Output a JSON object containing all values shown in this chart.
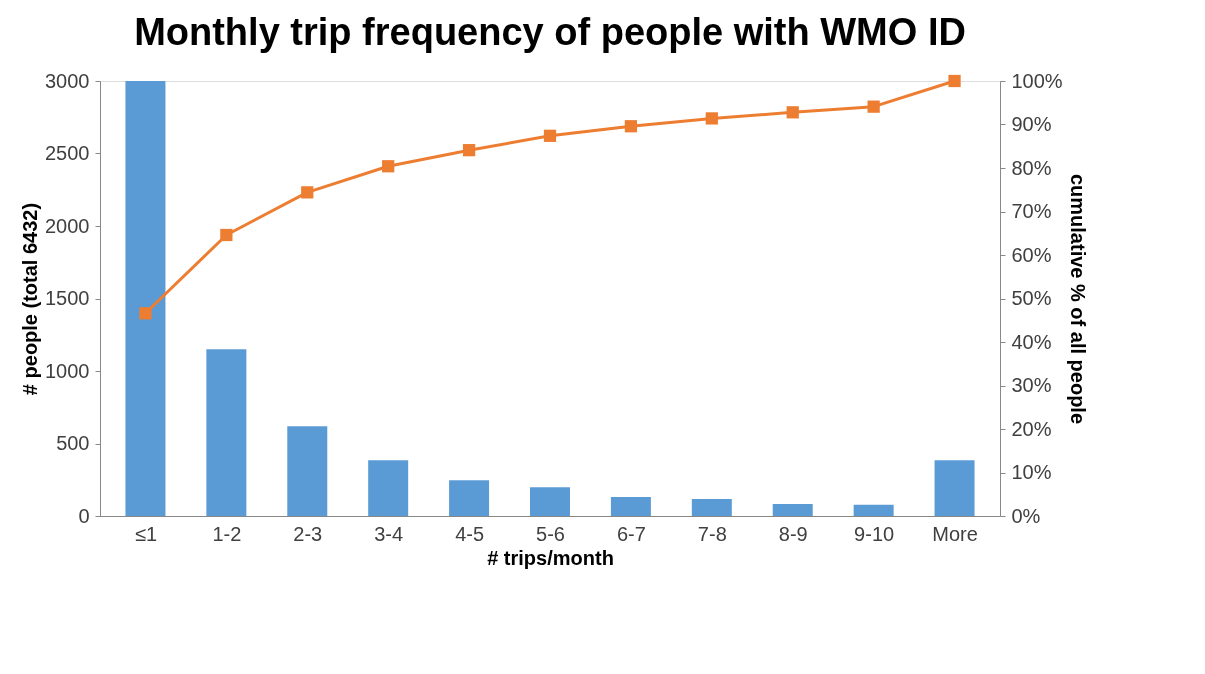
{
  "chart_data": {
    "type": "bar",
    "title": "Monthly trip frequency of people with WMO ID",
    "xlabel": "# trips/month",
    "ylabel": "# people (total 6432)",
    "y2label": "cumulative % of all people",
    "categories": [
      "≤1",
      "1-2",
      "2-3",
      "3-4",
      "4-5",
      "5-6",
      "6-7",
      "7-8",
      "8-9",
      "9-10",
      "More"
    ],
    "series": [
      {
        "color": "#5b9bd5",
        "values": [
          3000,
          1150,
          619,
          384,
          246,
          198,
          131,
          117,
          83,
          78,
          384
        ]
      },
      {
        "type": "line",
        "axis": "y2",
        "color": "#ed7d31",
        "marker": "square",
        "values": [
          46.6,
          64.6,
          74.4,
          80.4,
          84.1,
          87.4,
          89.6,
          91.4,
          92.8,
          94.1,
          100
        ]
      }
    ],
    "ylim": [
      0,
      3000
    ],
    "yticks": [
      0,
      500,
      1000,
      1500,
      2000,
      2500,
      3000
    ],
    "y2lim": [
      0,
      100
    ],
    "y2ticks": [
      {
        "value": 0,
        "label": "0%"
      },
      {
        "value": 10,
        "label": "10%"
      },
      {
        "value": 20,
        "label": "20%"
      },
      {
        "value": 30,
        "label": "30%"
      },
      {
        "value": 40,
        "label": "40%"
      },
      {
        "value": 50,
        "label": "50%"
      },
      {
        "value": 60,
        "label": "60%"
      },
      {
        "value": 70,
        "label": "70%"
      },
      {
        "value": 80,
        "label": "80%"
      },
      {
        "value": 90,
        "label": "90%"
      },
      {
        "value": 100,
        "label": "100%"
      }
    ],
    "grid": false
  }
}
